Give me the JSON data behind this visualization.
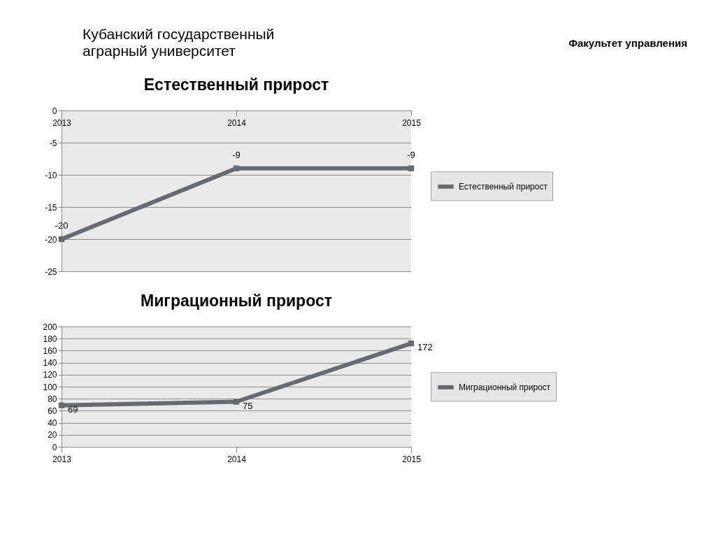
{
  "chart_data": [
    {
      "type": "line",
      "title": "Естественный прирост",
      "annotations": [
        "Кубанский государственный\nаграрный университет",
        "Факультет управления"
      ],
      "categories": [
        "2013",
        "2014",
        "2015"
      ],
      "series": [
        {
          "name": "Естественный прирост",
          "color": "#646b73",
          "values": [
            -20,
            -9,
            -9
          ]
        }
      ],
      "ylim": [
        -25,
        0
      ],
      "yticks": [
        -25,
        -20,
        -15,
        -10,
        -5,
        0
      ],
      "grid": "y",
      "legend": "right",
      "data_labels": true,
      "marker": "square",
      "line_style": "solid"
    },
    {
      "type": "line",
      "title": "Миграционный прирост",
      "categories": [
        "2013",
        "2014",
        "2015"
      ],
      "series": [
        {
          "name": "Миграционный прирост",
          "color": "#646b73",
          "values": [
            69,
            75,
            172
          ]
        }
      ],
      "ylim": [
        0,
        200
      ],
      "yticks": [
        0,
        20,
        40,
        60,
        80,
        100,
        120,
        140,
        160,
        180,
        200
      ],
      "grid": "y",
      "legend": "right",
      "data_labels": true,
      "marker": "square",
      "line_style": "solid"
    }
  ]
}
